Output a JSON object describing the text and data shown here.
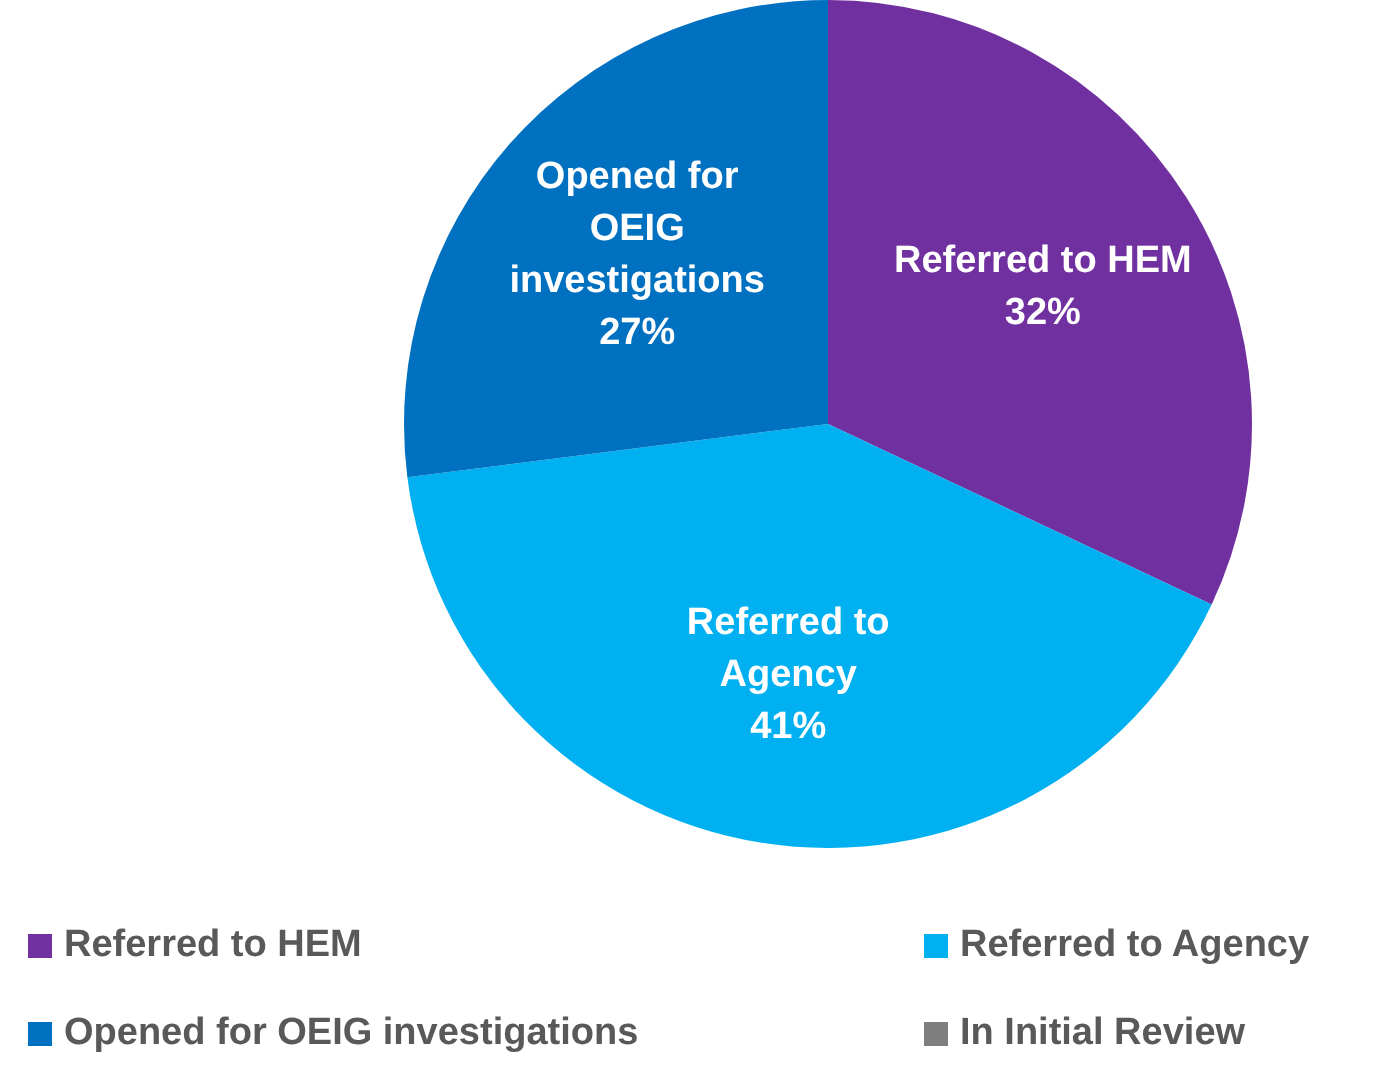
{
  "chart_data": {
    "type": "pie",
    "categories": [
      "Referred to HEM",
      "Referred to Agency",
      "Opened for OEIG investigations",
      "In Initial Review"
    ],
    "values": [
      32,
      41,
      27,
      0
    ],
    "colors": [
      "#7030a0",
      "#00b0f0",
      "#0070c0",
      "#7f7f7f"
    ],
    "value_labels": [
      "32%",
      "41%",
      "27%",
      null
    ],
    "legend": "bottom"
  }
}
